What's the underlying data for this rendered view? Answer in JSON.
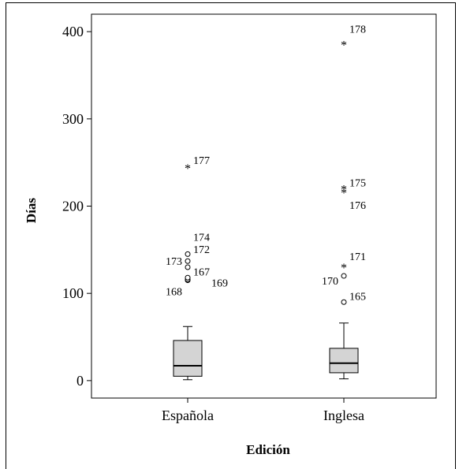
{
  "chart_data": {
    "type": "boxplot",
    "xlabel": "Edición",
    "ylabel": "Días",
    "ylim": [
      -20,
      420
    ],
    "yticks": [
      0,
      100,
      200,
      300,
      400
    ],
    "grid": false,
    "categories": [
      "Española",
      "Inglesa"
    ],
    "boxes": [
      {
        "category": "Española",
        "whisker_low": 1,
        "q1": 5,
        "median": 17,
        "q3": 46,
        "whisker_high": 62,
        "outliers": [
          {
            "id": "168",
            "value": 115,
            "marker": "circle"
          },
          {
            "id": "169",
            "value": 116,
            "marker": "circle"
          },
          {
            "id": "167",
            "value": 118,
            "marker": "circle"
          },
          {
            "id": "173",
            "value": 130,
            "marker": "circle"
          },
          {
            "id": "172",
            "value": 137,
            "marker": "circle"
          },
          {
            "id": "174",
            "value": 145,
            "marker": "circle"
          }
        ],
        "extremes": [
          {
            "id": "177",
            "value": 244,
            "marker": "star"
          }
        ]
      },
      {
        "category": "Inglesa",
        "whisker_low": 2,
        "q1": 9,
        "median": 20,
        "q3": 37,
        "whisker_high": 66,
        "outliers": [
          {
            "id": "165",
            "value": 90,
            "marker": "circle"
          },
          {
            "id": "170",
            "value": 120,
            "marker": "circle"
          }
        ],
        "extremes": [
          {
            "id": "171",
            "value": 130,
            "marker": "star"
          },
          {
            "id": "176",
            "value": 216,
            "marker": "star"
          },
          {
            "id": "175",
            "value": 220,
            "marker": "star"
          },
          {
            "id": "178",
            "value": 385,
            "marker": "star"
          }
        ]
      }
    ]
  }
}
